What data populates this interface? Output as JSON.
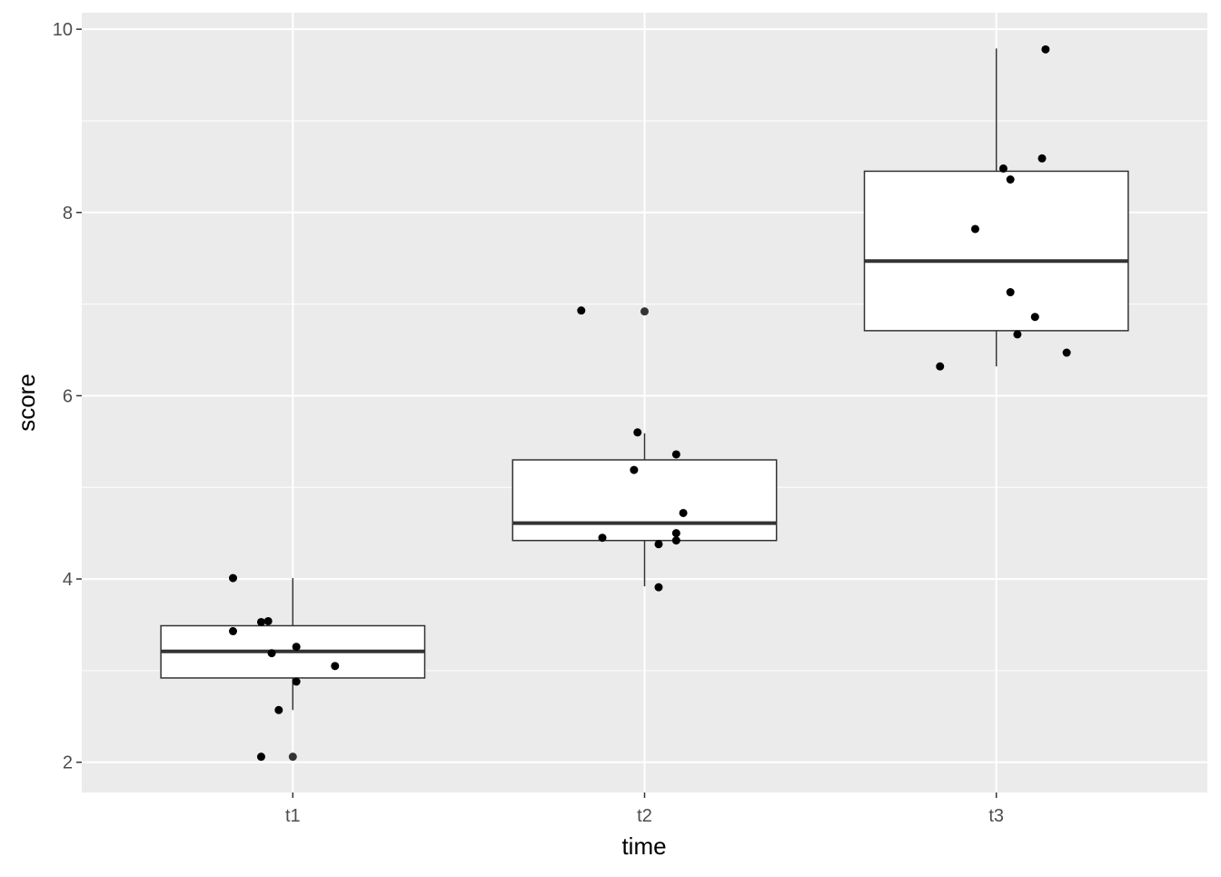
{
  "chart_data": {
    "type": "box",
    "title": "",
    "xlabel": "time",
    "ylabel": "score",
    "categories": [
      "t1",
      "t2",
      "t3"
    ],
    "ylim": [
      1.67,
      10.18
    ],
    "xlim": [
      0.4,
      3.6
    ],
    "yticks": [
      2,
      4,
      6,
      8,
      10
    ],
    "grid": true,
    "colors": {
      "panel": "#EBEBEB",
      "grid": "#FFFFFF",
      "box_fill": "#FFFFFF",
      "box_line": "#333333",
      "point": "#000000",
      "outlier": "#333333",
      "tick_text": "#4D4D4D"
    },
    "boxes": [
      {
        "category": "t1",
        "lower_whisker": 2.57,
        "q1": 2.92,
        "median": 3.21,
        "q3": 3.49,
        "upper_whisker": 4.01,
        "outliers": [
          2.06
        ]
      },
      {
        "category": "t2",
        "lower_whisker": 3.92,
        "q1": 4.42,
        "median": 4.61,
        "q3": 5.3,
        "upper_whisker": 5.59,
        "outliers": [
          6.92
        ]
      },
      {
        "category": "t3",
        "lower_whisker": 6.32,
        "q1": 6.71,
        "median": 7.47,
        "q3": 8.45,
        "upper_whisker": 9.79,
        "outliers": []
      }
    ],
    "points": [
      {
        "x": 0.83,
        "y": 4.01
      },
      {
        "x": 0.83,
        "y": 3.43
      },
      {
        "x": 0.91,
        "y": 3.53
      },
      {
        "x": 0.93,
        "y": 3.54
      },
      {
        "x": 0.94,
        "y": 3.19
      },
      {
        "x": 1.01,
        "y": 3.26
      },
      {
        "x": 1.12,
        "y": 3.05
      },
      {
        "x": 1.01,
        "y": 2.88
      },
      {
        "x": 0.96,
        "y": 2.57
      },
      {
        "x": 0.91,
        "y": 2.06
      },
      {
        "x": 1.82,
        "y": 6.93
      },
      {
        "x": 1.98,
        "y": 5.6
      },
      {
        "x": 1.97,
        "y": 5.19
      },
      {
        "x": 2.09,
        "y": 5.36
      },
      {
        "x": 2.11,
        "y": 4.72
      },
      {
        "x": 2.09,
        "y": 4.5
      },
      {
        "x": 1.88,
        "y": 4.45
      },
      {
        "x": 2.04,
        "y": 4.38
      },
      {
        "x": 2.09,
        "y": 4.42
      },
      {
        "x": 2.04,
        "y": 3.91
      },
      {
        "x": 3.14,
        "y": 9.78
      },
      {
        "x": 3.13,
        "y": 8.59
      },
      {
        "x": 3.02,
        "y": 8.48
      },
      {
        "x": 3.04,
        "y": 8.36
      },
      {
        "x": 2.94,
        "y": 7.82
      },
      {
        "x": 3.04,
        "y": 7.13
      },
      {
        "x": 3.11,
        "y": 6.86
      },
      {
        "x": 3.06,
        "y": 6.67
      },
      {
        "x": 3.2,
        "y": 6.47
      },
      {
        "x": 2.84,
        "y": 6.32
      }
    ]
  }
}
